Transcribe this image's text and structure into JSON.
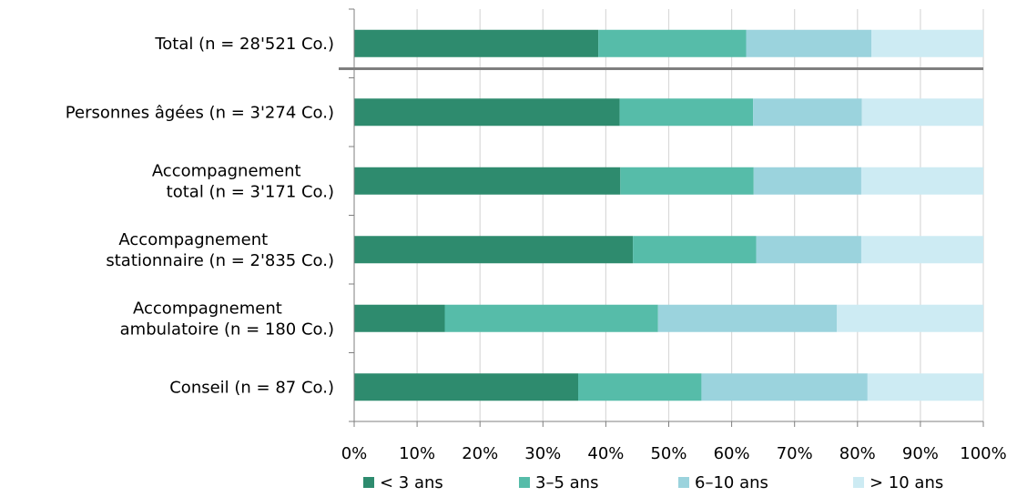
{
  "chart_data": {
    "type": "bar",
    "orientation": "horizontal",
    "stacked": "percent",
    "categories": [
      [
        "Total (n = 28'521 Co.)"
      ],
      [
        "Personnes âgées (n = 3'274 Co.)"
      ],
      [
        "Accompagnement",
        "total (n = 3'171 Co.)"
      ],
      [
        "Accompagnement",
        "stationnaire (n = 2'835 Co.)"
      ],
      [
        "Accompagnement",
        "ambulatoire (n = 180 Co.)"
      ],
      [
        "Conseil (n = 87 Co.)"
      ]
    ],
    "series": [
      {
        "name": "< 3 ans",
        "color": "#2e8b6e",
        "values": [
          38.8,
          42.2,
          42.3,
          44.3,
          14.4,
          35.6
        ]
      },
      {
        "name": "3–5 ans",
        "color": "#56bca9",
        "values": [
          23.5,
          21.2,
          21.2,
          19.6,
          33.9,
          19.6
        ]
      },
      {
        "name": "6–10 ans",
        "color": "#9bd3dd",
        "values": [
          19.9,
          17.3,
          17.1,
          16.7,
          28.4,
          26.4
        ]
      },
      {
        "name": "> 10 ans",
        "color": "#cdebf3",
        "values": [
          17.8,
          19.3,
          19.4,
          19.4,
          23.3,
          18.4
        ]
      }
    ],
    "x_ticks": [
      "0%",
      "10%",
      "20%",
      "30%",
      "40%",
      "50%",
      "60%",
      "70%",
      "80%",
      "90%",
      "100%"
    ],
    "xlim": [
      0,
      100
    ],
    "grid": "vertical",
    "separator_after_category": 0,
    "legend_position": "bottom"
  }
}
